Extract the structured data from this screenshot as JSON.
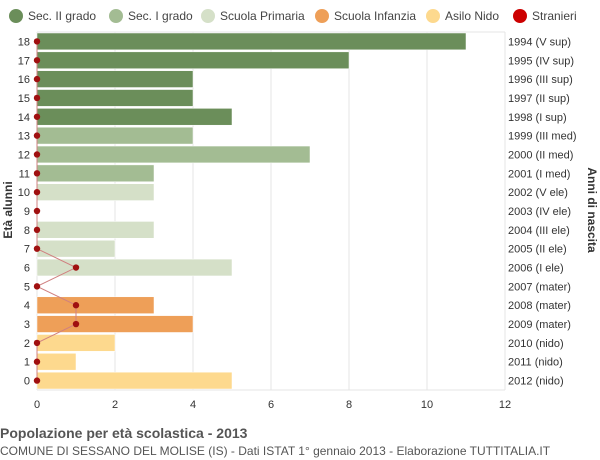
{
  "chart_data": {
    "type": "bar",
    "orientation": "horizontal",
    "title": "Popolazione per età scolastica - 2013",
    "subtitle": "COMUNE DI SESSANO DEL MOLISE (IS) - Dati ISTAT 1° gennaio 2013 - Elaborazione TUTTITALIA.IT",
    "ylabel_left": "Età alunni",
    "ylabel_right": "Anni di nascita",
    "xlim": [
      0,
      12
    ],
    "x_ticks": [
      0,
      2,
      4,
      6,
      8,
      10,
      12
    ],
    "grid": true,
    "legend_position": "top",
    "legend": [
      {
        "name": "Sec. II grado",
        "color": "#6b8e5a"
      },
      {
        "name": "Sec. I grado",
        "color": "#a3bc93"
      },
      {
        "name": "Scuola Primaria",
        "color": "#d5e0c8"
      },
      {
        "name": "Scuola Infanzia",
        "color": "#ee9f58"
      },
      {
        "name": "Asilo Nido",
        "color": "#fdd98e"
      },
      {
        "name": "Stranieri",
        "color": "#cc0000"
      }
    ],
    "rows": [
      {
        "age": "18",
        "birth": "1994 (V sup)",
        "value": 11,
        "group": 0,
        "stranieri": 0
      },
      {
        "age": "17",
        "birth": "1995 (IV sup)",
        "value": 8,
        "group": 0,
        "stranieri": 0
      },
      {
        "age": "16",
        "birth": "1996 (III sup)",
        "value": 4,
        "group": 0,
        "stranieri": 0
      },
      {
        "age": "15",
        "birth": "1997 (II sup)",
        "value": 4,
        "group": 0,
        "stranieri": 0
      },
      {
        "age": "14",
        "birth": "1998 (I sup)",
        "value": 5,
        "group": 0,
        "stranieri": 0
      },
      {
        "age": "13",
        "birth": "1999 (III med)",
        "value": 4,
        "group": 1,
        "stranieri": 0
      },
      {
        "age": "12",
        "birth": "2000 (II med)",
        "value": 7,
        "group": 1,
        "stranieri": 0
      },
      {
        "age": "11",
        "birth": "2001 (I med)",
        "value": 3,
        "group": 1,
        "stranieri": 0
      },
      {
        "age": "10",
        "birth": "2002 (V ele)",
        "value": 3,
        "group": 2,
        "stranieri": 0
      },
      {
        "age": "9",
        "birth": "2003 (IV ele)",
        "value": 0,
        "group": 2,
        "stranieri": 0
      },
      {
        "age": "8",
        "birth": "2004 (III ele)",
        "value": 3,
        "group": 2,
        "stranieri": 0
      },
      {
        "age": "7",
        "birth": "2005 (II ele)",
        "value": 2,
        "group": 2,
        "stranieri": 0
      },
      {
        "age": "6",
        "birth": "2006 (I ele)",
        "value": 5,
        "group": 2,
        "stranieri": 1
      },
      {
        "age": "5",
        "birth": "2007 (mater)",
        "value": 0,
        "group": 3,
        "stranieri": 0
      },
      {
        "age": "4",
        "birth": "2008 (mater)",
        "value": 3,
        "group": 3,
        "stranieri": 1
      },
      {
        "age": "3",
        "birth": "2009 (mater)",
        "value": 4,
        "group": 3,
        "stranieri": 1
      },
      {
        "age": "2",
        "birth": "2010 (nido)",
        "value": 2,
        "group": 4,
        "stranieri": 0
      },
      {
        "age": "1",
        "birth": "2011 (nido)",
        "value": 1,
        "group": 4,
        "stranieri": 0
      },
      {
        "age": "0",
        "birth": "2012 (nido)",
        "value": 5,
        "group": 4,
        "stranieri": 0
      }
    ]
  }
}
